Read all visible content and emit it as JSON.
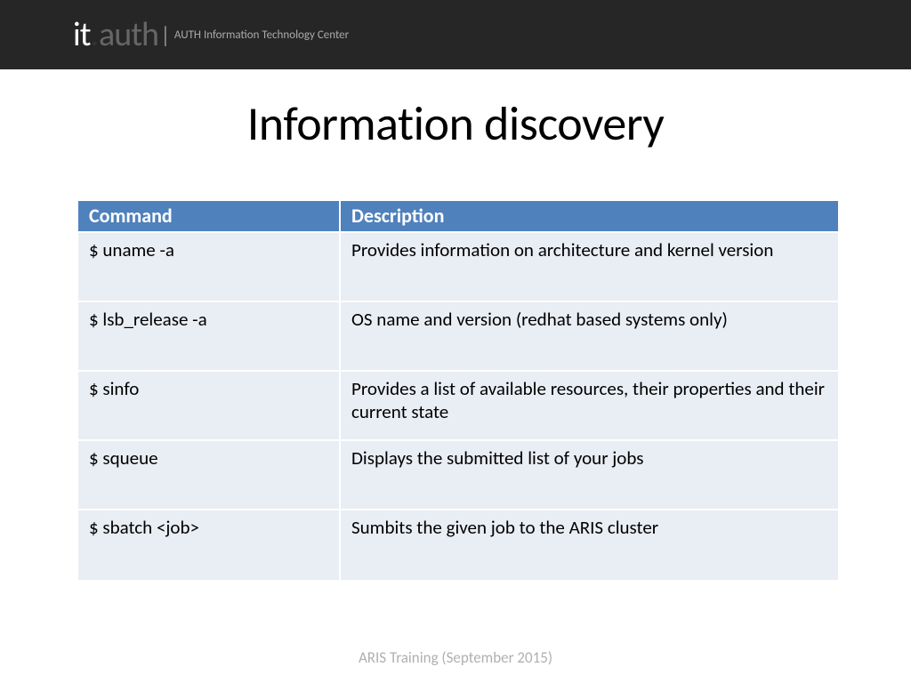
{
  "header": {
    "logo_it": "it",
    "logo_dot": ".",
    "logo_auth": "auth",
    "logo_pipe": "|",
    "subtitle": "AUTH Information Technology Center"
  },
  "title": "Information discovery",
  "table": {
    "header_bg": "#4f81bd",
    "header_fg": "#ffffff",
    "row_bg": "#e9edf4",
    "row_fg": "#000000",
    "columns": [
      "Command",
      "Description"
    ],
    "rows": [
      {
        "command": "$ uname -a",
        "description": "Provides information on architecture and kernel version"
      },
      {
        "command": "$ lsb_release -a",
        "description": "OS name and version (redhat based systems only)"
      },
      {
        "command": "$ sinfo",
        "description": "Provides a list of available resources, their properties and their current state"
      },
      {
        "command": "$ squeue",
        "description": "Displays the submitted list of your jobs"
      },
      {
        "command": "$ sbatch <job>",
        "description": "Sumbits the given job to the ARIS cluster"
      }
    ]
  },
  "footer": "ARIS Training (September 2015)"
}
